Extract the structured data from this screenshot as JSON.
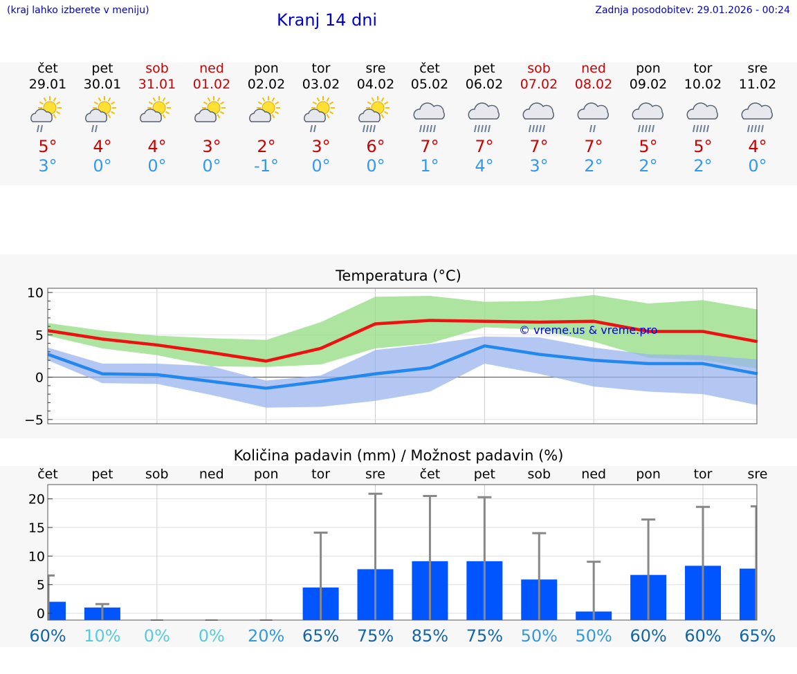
{
  "header": {
    "hint": "(kraj lahko izberete v meniju)",
    "title": "Kranj 14 dni",
    "updated": "Zadnja posodobitev: 29.01.2026 - 00:24"
  },
  "days": [
    {
      "name": "čet",
      "date": "29.01",
      "weekend": false,
      "icon": "sun-cloud-rain",
      "max": "5°",
      "min": "3°"
    },
    {
      "name": "pet",
      "date": "30.01",
      "weekend": false,
      "icon": "sun-cloud-rain",
      "max": "4°",
      "min": "0°"
    },
    {
      "name": "sob",
      "date": "31.01",
      "weekend": true,
      "icon": "sun-cloud",
      "max": "4°",
      "min": "0°"
    },
    {
      "name": "ned",
      "date": "01.02",
      "weekend": true,
      "icon": "sun-cloud",
      "max": "3°",
      "min": "0°"
    },
    {
      "name": "pon",
      "date": "02.02",
      "weekend": false,
      "icon": "sun-cloud",
      "max": "2°",
      "min": "-1°"
    },
    {
      "name": "tor",
      "date": "03.02",
      "weekend": false,
      "icon": "sun-cloud-rain",
      "max": "3°",
      "min": "0°"
    },
    {
      "name": "sre",
      "date": "04.02",
      "weekend": false,
      "icon": "sun-cloud-heavy-rain",
      "max": "6°",
      "min": "0°"
    },
    {
      "name": "čet",
      "date": "05.02",
      "weekend": false,
      "icon": "cloud-heavy-rain",
      "max": "7°",
      "min": "1°"
    },
    {
      "name": "pet",
      "date": "06.02",
      "weekend": false,
      "icon": "cloud-heavy-rain",
      "max": "7°",
      "min": "4°"
    },
    {
      "name": "sob",
      "date": "07.02",
      "weekend": true,
      "icon": "cloud-heavy-rain",
      "max": "7°",
      "min": "3°"
    },
    {
      "name": "ned",
      "date": "08.02",
      "weekend": true,
      "icon": "cloud-rain",
      "max": "7°",
      "min": "2°"
    },
    {
      "name": "pon",
      "date": "09.02",
      "weekend": false,
      "icon": "cloud-heavy-rain",
      "max": "5°",
      "min": "2°"
    },
    {
      "name": "tor",
      "date": "10.02",
      "weekend": false,
      "icon": "cloud-heavy-rain",
      "max": "5°",
      "min": "2°"
    },
    {
      "name": "sre",
      "date": "11.02",
      "weekend": false,
      "icon": "cloud-heavy-rain",
      "max": "4°",
      "min": "0°"
    }
  ],
  "colors": {
    "max": "#cc0000",
    "min": "#3399ee",
    "maxLine": "#ee1111",
    "minLine": "#2288ee",
    "maxBand": "#99dd88",
    "minBand": "#99b4ee",
    "bar": "#0055ff",
    "whisker": "#888888"
  },
  "chart_data": [
    {
      "type": "line",
      "title": "Temperatura (°C)",
      "ylim": [
        -5.5,
        10.5
      ],
      "yticks": [
        "10",
        "5",
        "0",
        "−5"
      ],
      "yticks_values": [
        10,
        5,
        0,
        -5
      ],
      "x": [
        0,
        1,
        2,
        3,
        4,
        5,
        6,
        7,
        8,
        9,
        10,
        11,
        12,
        13
      ],
      "watermark": "© vreme.us & vreme.pro",
      "series": [
        {
          "name": "max",
          "values": [
            5.5,
            4.5,
            3.8,
            2.9,
            1.9,
            3.4,
            6.3,
            6.7,
            6.6,
            6.5,
            6.6,
            5.4,
            5.4,
            4.2
          ]
        },
        {
          "name": "min",
          "values": [
            2.7,
            0.4,
            0.3,
            -0.5,
            -1.3,
            -0.5,
            0.4,
            1.1,
            3.7,
            2.7,
            2.0,
            1.6,
            1.6,
            0.4
          ]
        }
      ],
      "bands": [
        {
          "name": "max-range",
          "upper": [
            6.4,
            5.5,
            4.9,
            4.6,
            4.4,
            6.5,
            9.5,
            9.6,
            8.9,
            9.0,
            9.7,
            8.7,
            9.1,
            8.0
          ],
          "lower": [
            4.9,
            3.4,
            2.6,
            1.3,
            1.2,
            1.5,
            3.4,
            4.0,
            5.9,
            5.6,
            4.2,
            2.3,
            2.0,
            1.0
          ]
        },
        {
          "name": "min-range",
          "upper": [
            3.5,
            1.6,
            1.6,
            1.3,
            -0.4,
            0.2,
            3.2,
            3.9,
            4.8,
            4.7,
            3.5,
            2.7,
            2.6,
            2.1
          ],
          "lower": [
            2.0,
            -0.7,
            -0.8,
            -2.1,
            -3.6,
            -3.5,
            -2.8,
            -1.7,
            1.6,
            0.4,
            -1.1,
            -1.7,
            -2.0,
            -3.3
          ]
        }
      ]
    },
    {
      "type": "bar",
      "title": "Količina padavin (mm) / Možnost padavin (%)",
      "categories": [
        "čet",
        "pet",
        "sob",
        "ned",
        "pon",
        "tor",
        "sre",
        "čet",
        "pet",
        "sob",
        "ned",
        "pon",
        "tor",
        "sre"
      ],
      "values": [
        2.0,
        1.0,
        0,
        0,
        0,
        4.5,
        7.7,
        9.1,
        9.1,
        5.9,
        0.3,
        6.7,
        8.3,
        7.8
      ],
      "error_upper": [
        6.6,
        1.6,
        0,
        0,
        0,
        14.1,
        20.9,
        20.5,
        20.3,
        14.0,
        9.0,
        16.4,
        18.6,
        18.7
      ],
      "ylim": [
        -1.2,
        22.5
      ],
      "yticks": [
        "20",
        "15",
        "10",
        "5",
        "0"
      ],
      "yticks_values": [
        20,
        15,
        10,
        5,
        0
      ],
      "probability": [
        "60%",
        "10%",
        "0%",
        "0%",
        "20%",
        "65%",
        "75%",
        "85%",
        "75%",
        "50%",
        "50%",
        "60%",
        "60%",
        "65%"
      ],
      "probability_colors": [
        "#1166aa",
        "#55ccdd",
        "#55ccdd",
        "#55ccdd",
        "#3399dd",
        "#1166aa",
        "#1166aa",
        "#1166aa",
        "#1166aa",
        "#3399dd",
        "#3399dd",
        "#1166aa",
        "#1166aa",
        "#1166aa"
      ]
    }
  ]
}
